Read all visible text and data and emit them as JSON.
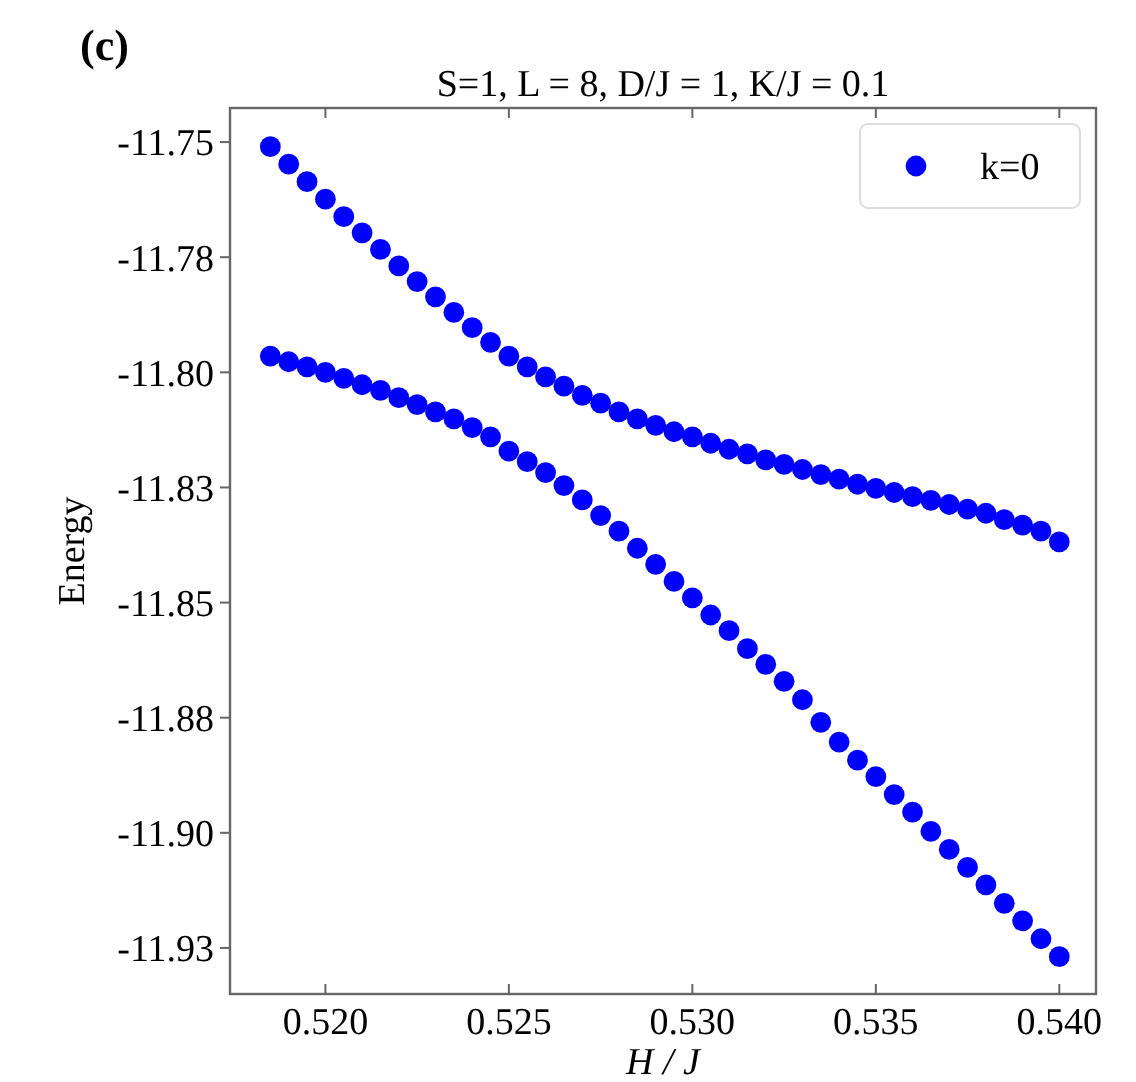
{
  "chart_data": {
    "type": "scatter",
    "title": "S=1, L = 8, D/J = 1, K/J = 0.1",
    "xlabel": "H / J",
    "ylabel": "Energy",
    "annotations": [
      "(c)"
    ],
    "xlim": [
      0.5174,
      0.541
    ],
    "xticks": [
      {
        "value": 0.52,
        "label": "0.520"
      },
      {
        "value": 0.525,
        "label": "0.525"
      },
      {
        "value": 0.53,
        "label": "0.530"
      },
      {
        "value": 0.535,
        "label": "0.535"
      },
      {
        "value": 0.54,
        "label": "0.540"
      }
    ],
    "ylim": [
      -11.935,
      -11.7426
    ],
    "yticks": [
      {
        "value": -11.75,
        "label": "-11.75"
      },
      {
        "value": -11.775,
        "label": "-11.78"
      },
      {
        "value": -11.8,
        "label": "-11.80"
      },
      {
        "value": -11.825,
        "label": "-11.83"
      },
      {
        "value": -11.85,
        "label": "-11.85"
      },
      {
        "value": -11.875,
        "label": "-11.88"
      },
      {
        "value": -11.9,
        "label": "-11.90"
      },
      {
        "value": -11.925,
        "label": "-11.93"
      }
    ],
    "grid": false,
    "legend": "top right",
    "marker": "circle",
    "series": [
      {
        "name": "k=0",
        "color": "#0000ff",
        "x": [
          0.5185,
          0.519,
          0.5195,
          0.52,
          0.5205,
          0.521,
          0.5215,
          0.522,
          0.5225,
          0.523,
          0.5235,
          0.524,
          0.5245,
          0.525,
          0.5255,
          0.526,
          0.5265,
          0.527,
          0.5275,
          0.528,
          0.5285,
          0.529,
          0.5295,
          0.53,
          0.5305,
          0.531,
          0.5315,
          0.532,
          0.5325,
          0.533,
          0.5335,
          0.534,
          0.5345,
          0.535,
          0.5355,
          0.536,
          0.5365,
          0.537,
          0.5375,
          0.538,
          0.5385,
          0.539,
          0.5395,
          0.54,
          0.5185,
          0.519,
          0.5195,
          0.52,
          0.5205,
          0.521,
          0.5215,
          0.522,
          0.5225,
          0.523,
          0.5235,
          0.524,
          0.5245,
          0.525,
          0.5255,
          0.526,
          0.5265,
          0.527,
          0.5275,
          0.528,
          0.5285,
          0.529,
          0.5295,
          0.53,
          0.5305,
          0.531,
          0.5315,
          0.532,
          0.5325,
          0.533,
          0.5335,
          0.534,
          0.5345,
          0.535,
          0.5355,
          0.536,
          0.5365,
          0.537,
          0.5375,
          0.538,
          0.5385,
          0.539,
          0.5395,
          0.54
        ],
        "values": [
          -11.751,
          -11.7548,
          -11.7586,
          -11.7624,
          -11.7662,
          -11.7697,
          -11.7733,
          -11.7769,
          -11.7803,
          -11.7836,
          -11.787,
          -11.7903,
          -11.7935,
          -11.7965,
          -11.7988,
          -11.801,
          -11.803,
          -11.805,
          -11.8067,
          -11.8086,
          -11.8101,
          -11.8115,
          -11.8129,
          -11.814,
          -11.8154,
          -11.8167,
          -11.8177,
          -11.819,
          -11.82,
          -11.8211,
          -11.8222,
          -11.8232,
          -11.8243,
          -11.8252,
          -11.8261,
          -11.827,
          -11.8278,
          -11.8287,
          -11.8297,
          -11.8306,
          -11.832,
          -11.8332,
          -11.8345,
          -11.8368,
          -11.7965,
          -11.7977,
          -11.7988,
          -11.8,
          -11.8013,
          -11.8027,
          -11.8039,
          -11.8055,
          -11.807,
          -11.8086,
          -11.8101,
          -11.812,
          -11.814,
          -11.8171,
          -11.8194,
          -11.8218,
          -11.8246,
          -11.8277,
          -11.8311,
          -11.8345,
          -11.8382,
          -11.8417,
          -11.8454,
          -11.849,
          -11.8527,
          -11.8561,
          -11.86,
          -11.8634,
          -11.8671,
          -11.8711,
          -11.876,
          -11.8803,
          -11.8842,
          -11.8878,
          -11.8917,
          -11.8955,
          -11.8997,
          -11.9036,
          -11.9075,
          -11.9113,
          -11.9153,
          -11.9191,
          -11.923,
          -11.9269
        ]
      }
    ]
  }
}
